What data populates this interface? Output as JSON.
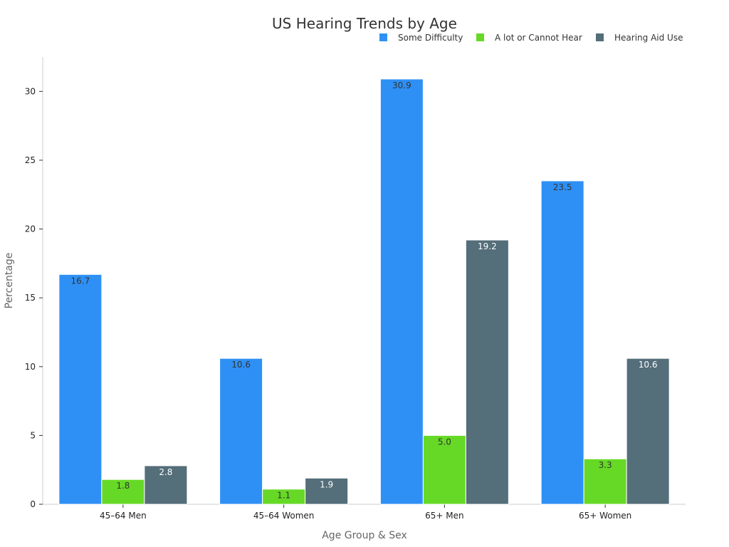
{
  "chart_data": {
    "type": "bar",
    "title": "US Hearing Trends by Age",
    "xlabel": "Age Group & Sex",
    "ylabel": "Percentage",
    "categories": [
      "45–64 Men",
      "45–64 Women",
      "65+ Men",
      "65+ Women"
    ],
    "series": [
      {
        "name": "Some Difficulty",
        "values": [
          16.7,
          10.6,
          30.9,
          23.5
        ],
        "color": "#2e90f5",
        "label_color": "#333333"
      },
      {
        "name": "A lot or Cannot Hear",
        "values": [
          1.8,
          1.1,
          5.0,
          3.3
        ],
        "color": "#66d926",
        "label_color": "#333333"
      },
      {
        "name": "Hearing Aid Use",
        "values": [
          2.8,
          1.9,
          19.2,
          10.6
        ],
        "color": "#546e7a",
        "label_color": "#ffffff"
      }
    ],
    "ylim": [
      0,
      32.5
    ],
    "yticks": [
      0,
      5,
      10,
      15,
      20,
      25,
      30
    ],
    "grid": false,
    "legend_position": "top-right",
    "value_format_decimals": 1
  }
}
